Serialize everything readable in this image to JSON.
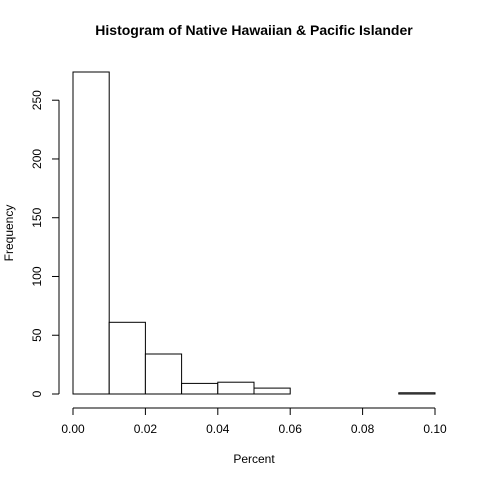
{
  "chart_data": {
    "type": "bar",
    "title": "Histogram of Native Hawaiian & Pacific Islander",
    "xlabel": "Percent",
    "ylabel": "Frequency",
    "bins": [
      {
        "start": 0.0,
        "end": 0.01,
        "count": 274
      },
      {
        "start": 0.01,
        "end": 0.02,
        "count": 61
      },
      {
        "start": 0.02,
        "end": 0.03,
        "count": 34
      },
      {
        "start": 0.03,
        "end": 0.04,
        "count": 9
      },
      {
        "start": 0.04,
        "end": 0.05,
        "count": 10
      },
      {
        "start": 0.05,
        "end": 0.06,
        "count": 5
      },
      {
        "start": 0.06,
        "end": 0.07,
        "count": 0
      },
      {
        "start": 0.07,
        "end": 0.08,
        "count": 0
      },
      {
        "start": 0.08,
        "end": 0.09,
        "count": 0
      },
      {
        "start": 0.09,
        "end": 0.1,
        "count": 1
      }
    ],
    "xlim": [
      0,
      0.1
    ],
    "ylim": [
      0,
      274
    ],
    "xticks": [
      0.0,
      0.02,
      0.04,
      0.06,
      0.08,
      0.1
    ],
    "xtick_labels": [
      "0.00",
      "0.02",
      "0.04",
      "0.06",
      "0.08",
      "0.10"
    ],
    "yticks": [
      0,
      50,
      100,
      150,
      200,
      250
    ],
    "ytick_labels": [
      "0",
      "50",
      "100",
      "150",
      "200",
      "250"
    ],
    "grid": false,
    "bar_fill": "#ffffff",
    "bar_stroke": "#000000"
  }
}
